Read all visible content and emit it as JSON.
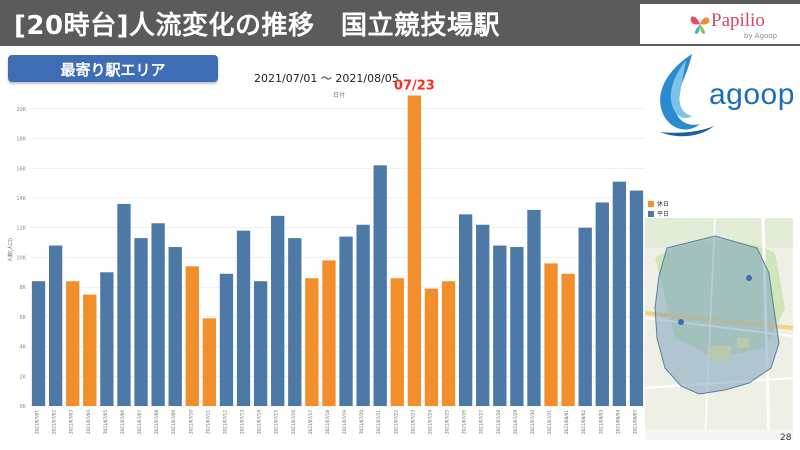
{
  "header": {
    "title": "[20時台]人流変化の推移　国立競技場駅",
    "brand_name": "Papilio",
    "brand_sub": "by Agoop"
  },
  "area_badge": "最寄り駅エリア",
  "date_range": "2021/07/01 ～ 2021/08/05",
  "logo_text": "agoop",
  "page_number": "28",
  "colors": {
    "weekday": "#4e79a7",
    "holiday": "#f28e2b",
    "highlight": "#ff2a1f",
    "header_bg": "#5b5b5b",
    "badge_bg": "#3e6db5"
  },
  "chart_data": {
    "type": "bar",
    "title": "日付",
    "ylabel": "人数(人口)",
    "ylim": [
      0,
      21000
    ],
    "yticks": [
      0,
      2000,
      4000,
      6000,
      8000,
      10000,
      12000,
      14000,
      16000,
      18000,
      20000
    ],
    "ytick_labels": [
      "0K",
      "2K",
      "4K",
      "6K",
      "8K",
      "10K",
      "12K",
      "14K",
      "16K",
      "18K",
      "20K"
    ],
    "categories": [
      "2021/07/01",
      "2021/07/02",
      "2021/07/03",
      "2021/07/04",
      "2021/07/05",
      "2021/07/06",
      "2021/07/07",
      "2021/07/08",
      "2021/07/09",
      "2021/07/10",
      "2021/07/11",
      "2021/07/12",
      "2021/07/13",
      "2021/07/14",
      "2021/07/15",
      "2021/07/16",
      "2021/07/17",
      "2021/07/18",
      "2021/07/19",
      "2021/07/20",
      "2021/07/21",
      "2021/07/22",
      "2021/07/23",
      "2021/07/24",
      "2021/07/25",
      "2021/07/26",
      "2021/07/27",
      "2021/07/28",
      "2021/07/29",
      "2021/07/30",
      "2021/07/31",
      "2021/08/01",
      "2021/08/02",
      "2021/08/03",
      "2021/08/04",
      "2021/08/05"
    ],
    "values": [
      8400,
      10800,
      8400,
      7500,
      9000,
      13600,
      11300,
      12300,
      10700,
      9400,
      5900,
      8900,
      11800,
      8400,
      12800,
      11300,
      8600,
      9800,
      11400,
      12200,
      16200,
      8600,
      20900,
      7900,
      8400,
      12900,
      12200,
      10800,
      10700,
      13200,
      9600,
      8900,
      12000,
      13700,
      15100,
      14500
    ],
    "day_type": [
      "平日",
      "平日",
      "休日",
      "休日",
      "平日",
      "平日",
      "平日",
      "平日",
      "平日",
      "休日",
      "休日",
      "平日",
      "平日",
      "平日",
      "平日",
      "平日",
      "休日",
      "休日",
      "平日",
      "平日",
      "平日",
      "休日",
      "休日",
      "休日",
      "休日",
      "平日",
      "平日",
      "平日",
      "平日",
      "平日",
      "休日",
      "休日",
      "平日",
      "平日",
      "平日",
      "平日"
    ],
    "legend": [
      {
        "name": "休日",
        "color": "#f28e2b"
      },
      {
        "name": "平日",
        "color": "#4e79a7"
      }
    ],
    "annotation": {
      "label": "07/23",
      "category": "2021/07/23"
    }
  }
}
